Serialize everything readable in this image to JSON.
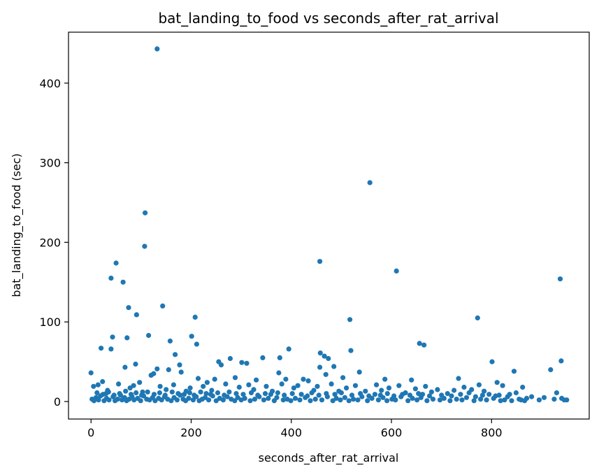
{
  "chart_data": {
    "type": "scatter",
    "title": "bat_landing_to_food vs seconds_after_rat_arrival",
    "xlabel": "seconds_after_rat_arrival",
    "ylabel": "bat_landing_to_food (sec)",
    "xlim": [
      -45,
      995
    ],
    "ylim": [
      -22,
      464
    ],
    "xticks": [
      0,
      200,
      400,
      600,
      800
    ],
    "yticks": [
      0,
      100,
      200,
      300,
      400
    ],
    "grid": false,
    "marker_color": "#1f77b4",
    "points": [
      [
        132,
        443
      ],
      [
        557,
        275
      ],
      [
        108,
        237
      ],
      [
        107,
        195
      ],
      [
        457,
        176
      ],
      [
        50,
        174
      ],
      [
        610,
        164
      ],
      [
        40,
        155
      ],
      [
        937,
        154
      ],
      [
        64,
        150
      ],
      [
        143,
        120
      ],
      [
        75,
        118
      ],
      [
        91,
        109
      ],
      [
        208,
        106
      ],
      [
        772,
        105
      ],
      [
        517,
        103
      ],
      [
        115,
        83
      ],
      [
        201,
        82
      ],
      [
        43,
        81
      ],
      [
        72,
        80
      ],
      [
        158,
        76
      ],
      [
        211,
        72
      ],
      [
        656,
        73
      ],
      [
        665,
        71
      ],
      [
        20,
        67
      ],
      [
        40,
        66
      ],
      [
        395,
        66
      ],
      [
        519,
        64
      ],
      [
        458,
        61
      ],
      [
        168,
        59
      ],
      [
        466,
        57
      ],
      [
        343,
        55
      ],
      [
        278,
        54
      ],
      [
        377,
        55
      ],
      [
        255,
        50
      ],
      [
        301,
        49
      ],
      [
        311,
        48
      ],
      [
        801,
        50
      ],
      [
        939,
        51
      ],
      [
        89,
        47
      ],
      [
        177,
        46
      ],
      [
        260,
        46
      ],
      [
        474,
        54
      ],
      [
        485,
        44
      ],
      [
        457,
        43
      ],
      [
        68,
        43
      ],
      [
        155,
        40
      ],
      [
        180,
        37
      ],
      [
        536,
        37
      ],
      [
        845,
        38
      ],
      [
        918,
        40
      ],
      [
        0,
        36
      ],
      [
        375,
        36
      ],
      [
        389,
        28
      ],
      [
        120,
        33
      ],
      [
        125,
        35
      ],
      [
        132,
        41
      ],
      [
        214,
        29
      ],
      [
        247,
        28
      ],
      [
        288,
        30
      ],
      [
        330,
        27
      ],
      [
        424,
        28
      ],
      [
        434,
        26
      ],
      [
        469,
        34
      ],
      [
        503,
        30
      ],
      [
        587,
        28
      ],
      [
        640,
        27
      ],
      [
        734,
        29
      ],
      [
        760,
        15
      ],
      [
        775,
        21
      ],
      [
        811,
        24
      ],
      [
        822,
        20
      ],
      [
        849,
        11
      ],
      [
        862,
        18
      ],
      [
        930,
        11
      ],
      [
        5,
        19
      ],
      [
        14,
        21
      ],
      [
        23,
        25
      ],
      [
        30,
        10
      ],
      [
        33,
        14
      ],
      [
        55,
        22
      ],
      [
        78,
        17
      ],
      [
        85,
        20
      ],
      [
        97,
        24
      ],
      [
        103,
        12
      ],
      [
        138,
        19
      ],
      [
        150,
        15
      ],
      [
        165,
        21
      ],
      [
        190,
        13
      ],
      [
        198,
        17
      ],
      [
        224,
        19
      ],
      [
        232,
        24
      ],
      [
        241,
        14
      ],
      [
        269,
        22
      ],
      [
        296,
        18
      ],
      [
        315,
        21
      ],
      [
        325,
        15
      ],
      [
        350,
        19
      ],
      [
        362,
        13
      ],
      [
        381,
        22
      ],
      [
        405,
        17
      ],
      [
        413,
        20
      ],
      [
        445,
        14
      ],
      [
        452,
        19
      ],
      [
        480,
        22
      ],
      [
        495,
        13
      ],
      [
        510,
        17
      ],
      [
        528,
        20
      ],
      [
        548,
        13
      ],
      [
        570,
        21
      ],
      [
        580,
        14
      ],
      [
        595,
        17
      ],
      [
        615,
        20
      ],
      [
        628,
        11
      ],
      [
        648,
        16
      ],
      [
        668,
        19
      ],
      [
        680,
        12
      ],
      [
        692,
        15
      ],
      [
        712,
        10
      ],
      [
        725,
        14
      ],
      [
        745,
        18
      ],
      [
        755,
        11
      ],
      [
        785,
        13
      ],
      [
        795,
        9
      ],
      [
        815,
        8
      ],
      [
        832,
        6
      ],
      [
        855,
        3
      ],
      [
        870,
        4
      ],
      [
        880,
        6
      ],
      [
        895,
        2
      ],
      [
        905,
        5
      ],
      [
        925,
        3
      ],
      [
        945,
        2
      ],
      [
        950,
        2
      ],
      [
        940,
        4
      ],
      [
        2,
        3
      ],
      [
        6,
        1
      ],
      [
        10,
        5
      ],
      [
        15,
        2
      ],
      [
        19,
        7
      ],
      [
        26,
        1
      ],
      [
        31,
        4
      ],
      [
        36,
        2
      ],
      [
        44,
        6
      ],
      [
        48,
        1
      ],
      [
        53,
        3
      ],
      [
        59,
        8
      ],
      [
        62,
        2
      ],
      [
        67,
        5
      ],
      [
        71,
        1
      ],
      [
        76,
        3
      ],
      [
        82,
        6
      ],
      [
        86,
        2
      ],
      [
        93,
        4
      ],
      [
        99,
        1
      ],
      [
        105,
        7
      ],
      [
        111,
        3
      ],
      [
        117,
        2
      ],
      [
        123,
        5
      ],
      [
        128,
        1
      ],
      [
        135,
        4
      ],
      [
        141,
        2
      ],
      [
        147,
        6
      ],
      [
        153,
        3
      ],
      [
        160,
        1
      ],
      [
        166,
        5
      ],
      [
        172,
        2
      ],
      [
        178,
        8
      ],
      [
        184,
        3
      ],
      [
        189,
        1
      ],
      [
        195,
        4
      ],
      [
        204,
        2
      ],
      [
        210,
        6
      ],
      [
        216,
        1
      ],
      [
        222,
        3
      ],
      [
        228,
        5
      ],
      [
        235,
        2
      ],
      [
        243,
        7
      ],
      [
        250,
        1
      ],
      [
        257,
        4
      ],
      [
        264,
        2
      ],
      [
        272,
        6
      ],
      [
        280,
        3
      ],
      [
        287,
        1
      ],
      [
        293,
        5
      ],
      [
        300,
        2
      ],
      [
        307,
        4
      ],
      [
        318,
        1
      ],
      [
        327,
        3
      ],
      [
        336,
        6
      ],
      [
        345,
        2
      ],
      [
        354,
        4
      ],
      [
        366,
        1
      ],
      [
        371,
        5
      ],
      [
        384,
        2
      ],
      [
        392,
        3
      ],
      [
        399,
        1
      ],
      [
        408,
        4
      ],
      [
        417,
        2
      ],
      [
        428,
        5
      ],
      [
        438,
        1
      ],
      [
        448,
        3
      ],
      [
        461,
        2
      ],
      [
        472,
        6
      ],
      [
        483,
        1
      ],
      [
        490,
        4
      ],
      [
        498,
        2
      ],
      [
        507,
        5
      ],
      [
        515,
        1
      ],
      [
        524,
        3
      ],
      [
        533,
        2
      ],
      [
        541,
        6
      ],
      [
        552,
        1
      ],
      [
        561,
        4
      ],
      [
        574,
        2
      ],
      [
        583,
        5
      ],
      [
        591,
        1
      ],
      [
        601,
        3
      ],
      [
        608,
        2
      ],
      [
        619,
        6
      ],
      [
        633,
        1
      ],
      [
        642,
        4
      ],
      [
        651,
        2
      ],
      [
        659,
        5
      ],
      [
        671,
        1
      ],
      [
        683,
        3
      ],
      [
        697,
        2
      ],
      [
        705,
        4
      ],
      [
        717,
        1
      ],
      [
        730,
        3
      ],
      [
        741,
        2
      ],
      [
        750,
        5
      ],
      [
        765,
        1
      ],
      [
        778,
        3
      ],
      [
        790,
        2
      ],
      [
        804,
        4
      ],
      [
        818,
        1
      ],
      [
        826,
        2
      ],
      [
        840,
        1
      ],
      [
        859,
        2
      ],
      [
        12,
        11
      ],
      [
        24,
        9
      ],
      [
        35,
        12
      ],
      [
        46,
        8
      ],
      [
        57,
        10
      ],
      [
        69,
        13
      ],
      [
        80,
        9
      ],
      [
        90,
        11
      ],
      [
        101,
        8
      ],
      [
        113,
        12
      ],
      [
        126,
        9
      ],
      [
        137,
        11
      ],
      [
        148,
        8
      ],
      [
        162,
        12
      ],
      [
        174,
        10
      ],
      [
        186,
        9
      ],
      [
        197,
        11
      ],
      [
        206,
        8
      ],
      [
        219,
        12
      ],
      [
        230,
        10
      ],
      [
        239,
        9
      ],
      [
        253,
        11
      ],
      [
        266,
        8
      ],
      [
        276,
        12
      ],
      [
        290,
        10
      ],
      [
        304,
        9
      ],
      [
        320,
        11
      ],
      [
        333,
        8
      ],
      [
        348,
        10
      ],
      [
        359,
        9
      ],
      [
        373,
        11
      ],
      [
        386,
        8
      ],
      [
        402,
        10
      ],
      [
        420,
        9
      ],
      [
        432,
        7
      ],
      [
        441,
        11
      ],
      [
        455,
        8
      ],
      [
        470,
        10
      ],
      [
        487,
        9
      ],
      [
        500,
        11
      ],
      [
        521,
        8
      ],
      [
        538,
        10
      ],
      [
        555,
        7
      ],
      [
        567,
        9
      ],
      [
        578,
        8
      ],
      [
        592,
        10
      ],
      [
        605,
        7
      ],
      [
        622,
        9
      ],
      [
        637,
        8
      ],
      [
        654,
        10
      ],
      [
        662,
        9
      ],
      [
        676,
        7
      ],
      [
        700,
        8
      ],
      [
        720,
        7
      ],
      [
        738,
        9
      ],
      [
        768,
        6
      ],
      [
        782,
        8
      ],
      [
        808,
        7
      ],
      [
        836,
        9
      ],
      [
        866,
        1
      ]
    ]
  }
}
